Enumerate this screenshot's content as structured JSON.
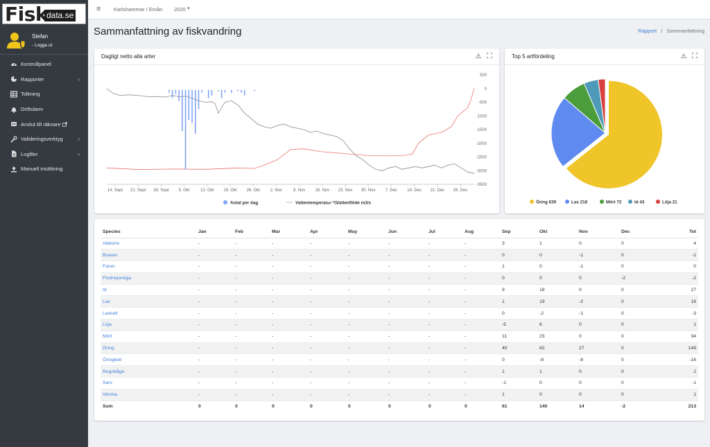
{
  "logo": {
    "fisk": "Fisk",
    "data": "data.se"
  },
  "user": {
    "name": "Stefan",
    "logout": "- Logga ut"
  },
  "nav": [
    {
      "label": "Kontrollpanel",
      "icon": "dashboard-icon",
      "chevron": false
    },
    {
      "label": "Rapporter",
      "icon": "pie-chart-icon",
      "chevron": true
    },
    {
      "label": "Tolkning",
      "icon": "table-icon",
      "chevron": false
    },
    {
      "label": "Driftslarm",
      "icon": "bell-icon",
      "chevron": false
    },
    {
      "label": "Anslut till räknare",
      "icon": "plug-icon",
      "chevron": false,
      "external": true
    },
    {
      "label": "Valideringsverktyg",
      "icon": "tools-icon",
      "chevron": true
    },
    {
      "label": "Logfiler",
      "icon": "file-icon",
      "chevron": true
    },
    {
      "label": "Manuell insättning",
      "icon": "upload-icon",
      "chevron": false
    }
  ],
  "topbar": {
    "location": "Karlshammar / Emån",
    "year": "2020"
  },
  "page": {
    "title": "Sammanfattning av fiskvandring"
  },
  "breadcrumb": {
    "link": "Rapport",
    "sep": "/",
    "current": "Sammanfattning"
  },
  "cards": {
    "daily": {
      "title": "Dagligt netto alla arter"
    },
    "top5": {
      "title": "Top 5 artfördeling"
    }
  },
  "colors": {
    "accent": "#3f7fd9",
    "sidebar": "#343a40",
    "bar": "#7ea4f2",
    "temp": "#e8736c",
    "flow": "#888888"
  },
  "chart_data": [
    {
      "type": "line",
      "title": "Dagligt netto alla arter",
      "x_ticks": [
        "14. Sept",
        "21. Sept",
        "28. Sept",
        "5. Okt",
        "12. Okt",
        "19. Okt",
        "26. Okt",
        "2. Nov",
        "9. Nov",
        "16. Nov",
        "23. Nov",
        "30. Nov",
        "7. Dec",
        "14. Dec",
        "21. Dec",
        "28. Dec"
      ],
      "y_right_ticks": [
        "500",
        "0",
        "-500",
        "-1000",
        "-1500",
        "-2000",
        "-2500",
        "-3000",
        "-3500"
      ],
      "y_right_range": [
        -3500,
        500
      ],
      "x_range_days": [
        0,
        112
      ],
      "legend": [
        "Antal per dag",
        "Vattentemperatur °C",
        "Vattenflöde m3/s"
      ],
      "legend_colors": [
        "#7ea4f2",
        "#bbbbbb",
        "#bbbbbb"
      ],
      "series": [
        {
          "name": "Vattenflöde m3/s",
          "points": [
            [
              0,
              0
            ],
            [
              2,
              -180
            ],
            [
              4,
              -250
            ],
            [
              7,
              -230
            ],
            [
              10,
              -260
            ],
            [
              13,
              -300
            ],
            [
              15,
              -290
            ],
            [
              18,
              -310
            ],
            [
              20,
              -250
            ],
            [
              22,
              -300
            ],
            [
              24,
              -280
            ],
            [
              26,
              -350
            ],
            [
              28,
              -450
            ],
            [
              30,
              -500
            ],
            [
              32,
              -480
            ],
            [
              33,
              -550
            ],
            [
              34,
              -900
            ],
            [
              35,
              -700
            ],
            [
              36,
              -500
            ],
            [
              38,
              -450
            ],
            [
              40,
              -600
            ],
            [
              42,
              -900
            ],
            [
              44,
              -1100
            ],
            [
              46,
              -1300
            ],
            [
              48,
              -1400
            ],
            [
              50,
              -1450
            ],
            [
              52,
              -1350
            ],
            [
              54,
              -1300
            ],
            [
              56,
              -1400
            ],
            [
              58,
              -1450
            ],
            [
              60,
              -1500
            ],
            [
              62,
              -1600
            ],
            [
              64,
              -1550
            ],
            [
              66,
              -1650
            ],
            [
              68,
              -1700
            ],
            [
              70,
              -1750
            ],
            [
              72,
              -1900
            ],
            [
              74,
              -2200
            ],
            [
              76,
              -2450
            ],
            [
              78,
              -2600
            ],
            [
              80,
              -2800
            ],
            [
              82,
              -2950
            ],
            [
              84,
              -3000
            ],
            [
              86,
              -2900
            ],
            [
              88,
              -2850
            ],
            [
              90,
              -2950
            ],
            [
              92,
              -2900
            ],
            [
              94,
              -2850
            ],
            [
              96,
              -2900
            ],
            [
              98,
              -2850
            ],
            [
              100,
              -2800
            ],
            [
              102,
              -2900
            ],
            [
              104,
              -2800
            ],
            [
              106,
              -2750
            ],
            [
              108,
              -2900
            ],
            [
              110,
              -3050
            ],
            [
              112,
              -3100
            ]
          ]
        },
        {
          "name": "Vattentemperatur °C",
          "points": [
            [
              0,
              -2900
            ],
            [
              10,
              -2960
            ],
            [
              20,
              -2940
            ],
            [
              30,
              -2950
            ],
            [
              40,
              -2900
            ],
            [
              45,
              -2920
            ],
            [
              48,
              -2800
            ],
            [
              52,
              -2600
            ],
            [
              56,
              -2230
            ],
            [
              60,
              -2200
            ],
            [
              65,
              -2300
            ],
            [
              70,
              -2350
            ],
            [
              75,
              -2400
            ],
            [
              80,
              -2450
            ],
            [
              85,
              -2460
            ],
            [
              90,
              -2450
            ],
            [
              93,
              -2400
            ],
            [
              95,
              -2000
            ],
            [
              98,
              -1700
            ],
            [
              102,
              -1600
            ],
            [
              105,
              -1400
            ],
            [
              107,
              -1000
            ],
            [
              109,
              -800
            ],
            [
              110,
              -700
            ],
            [
              111,
              -400
            ],
            [
              112,
              0
            ]
          ]
        },
        {
          "name": "Antal per dag",
          "points": [
            [
              19,
              -100
            ],
            [
              20,
              -300
            ],
            [
              21,
              -150
            ],
            [
              22,
              -400
            ],
            [
              23,
              -1500
            ],
            [
              24,
              -2900
            ],
            [
              25,
              -1100
            ],
            [
              26,
              -1200
            ],
            [
              27,
              -1600
            ],
            [
              28,
              -700
            ],
            [
              29,
              -100
            ],
            [
              31,
              -300
            ],
            [
              32,
              -200
            ],
            [
              34,
              -50
            ],
            [
              35,
              -300
            ],
            [
              36,
              -100
            ],
            [
              38,
              -100
            ],
            [
              40,
              -50
            ],
            [
              41,
              -100
            ],
            [
              42,
              -200
            ],
            [
              45,
              -50
            ]
          ]
        }
      ]
    },
    {
      "type": "pie",
      "title": "Top 5 artfördeling",
      "categories": [
        "Öring",
        "Lax",
        "Mört",
        "Id",
        "Löja"
      ],
      "values": [
        639,
        218,
        72,
        43,
        21
      ],
      "colors": [
        "#efc529",
        "#5f8bf0",
        "#4a9d3a",
        "#4e9ab8",
        "#d8403f"
      ],
      "legend": [
        "Öring 639",
        "Lax 218",
        "Mört 72",
        "Id 43",
        "Löja 21"
      ]
    }
  ],
  "table": {
    "headers": [
      "Species",
      "Jan",
      "Feb",
      "Mar",
      "Apr",
      "May",
      "Jun",
      "Jul",
      "Aug",
      "Sep",
      "Okt",
      "Nov",
      "Dec",
      "Tot"
    ],
    "rows": [
      [
        "Abborre",
        "-",
        "-",
        "-",
        "-",
        "-",
        "-",
        "-",
        "-",
        "3",
        "1",
        "0",
        "0",
        "4"
      ],
      [
        "Braxen",
        "-",
        "-",
        "-",
        "-",
        "-",
        "-",
        "-",
        "-",
        "0",
        "0",
        "-1",
        "0",
        "-1"
      ],
      [
        "Faren",
        "-",
        "-",
        "-",
        "-",
        "-",
        "-",
        "-",
        "-",
        "1",
        "0",
        "-1",
        "0",
        "0"
      ],
      [
        "Flodnejonöga",
        "-",
        "-",
        "-",
        "-",
        "-",
        "-",
        "-",
        "-",
        "0",
        "0",
        "0",
        "-2",
        "-2"
      ],
      [
        "Id",
        "-",
        "-",
        "-",
        "-",
        "-",
        "-",
        "-",
        "-",
        "9",
        "18",
        "0",
        "0",
        "27"
      ],
      [
        "Lax",
        "-",
        "-",
        "-",
        "-",
        "-",
        "-",
        "-",
        "-",
        "1",
        "19",
        "-2",
        "0",
        "18"
      ],
      [
        "Laxkelt",
        "-",
        "-",
        "-",
        "-",
        "-",
        "-",
        "-",
        "-",
        "0",
        "-2",
        "-1",
        "0",
        "-3"
      ],
      [
        "Löja",
        "-",
        "-",
        "-",
        "-",
        "-",
        "-",
        "-",
        "-",
        "-5",
        "6",
        "0",
        "0",
        "1"
      ],
      [
        "Mört",
        "-",
        "-",
        "-",
        "-",
        "-",
        "-",
        "-",
        "-",
        "11",
        "23",
        "0",
        "0",
        "34"
      ],
      [
        "Öring",
        "-",
        "-",
        "-",
        "-",
        "-",
        "-",
        "-",
        "-",
        "40",
        "82",
        "27",
        "0",
        "149"
      ],
      [
        "Öringkelt",
        "-",
        "-",
        "-",
        "-",
        "-",
        "-",
        "-",
        "-",
        "0",
        "-8",
        "-8",
        "0",
        "-16"
      ],
      [
        "Regnbåge",
        "-",
        "-",
        "-",
        "-",
        "-",
        "-",
        "-",
        "-",
        "1",
        "1",
        "0",
        "0",
        "2"
      ],
      [
        "Sarv",
        "-",
        "-",
        "-",
        "-",
        "-",
        "-",
        "-",
        "-",
        "-1",
        "0",
        "0",
        "0",
        "-1"
      ],
      [
        "Vimma",
        "-",
        "-",
        "-",
        "-",
        "-",
        "-",
        "-",
        "-",
        "1",
        "0",
        "0",
        "0",
        "1"
      ]
    ],
    "sum": [
      "Sum",
      "0",
      "0",
      "0",
      "0",
      "0",
      "0",
      "0",
      "0",
      "61",
      "140",
      "14",
      "-2",
      "213"
    ]
  }
}
